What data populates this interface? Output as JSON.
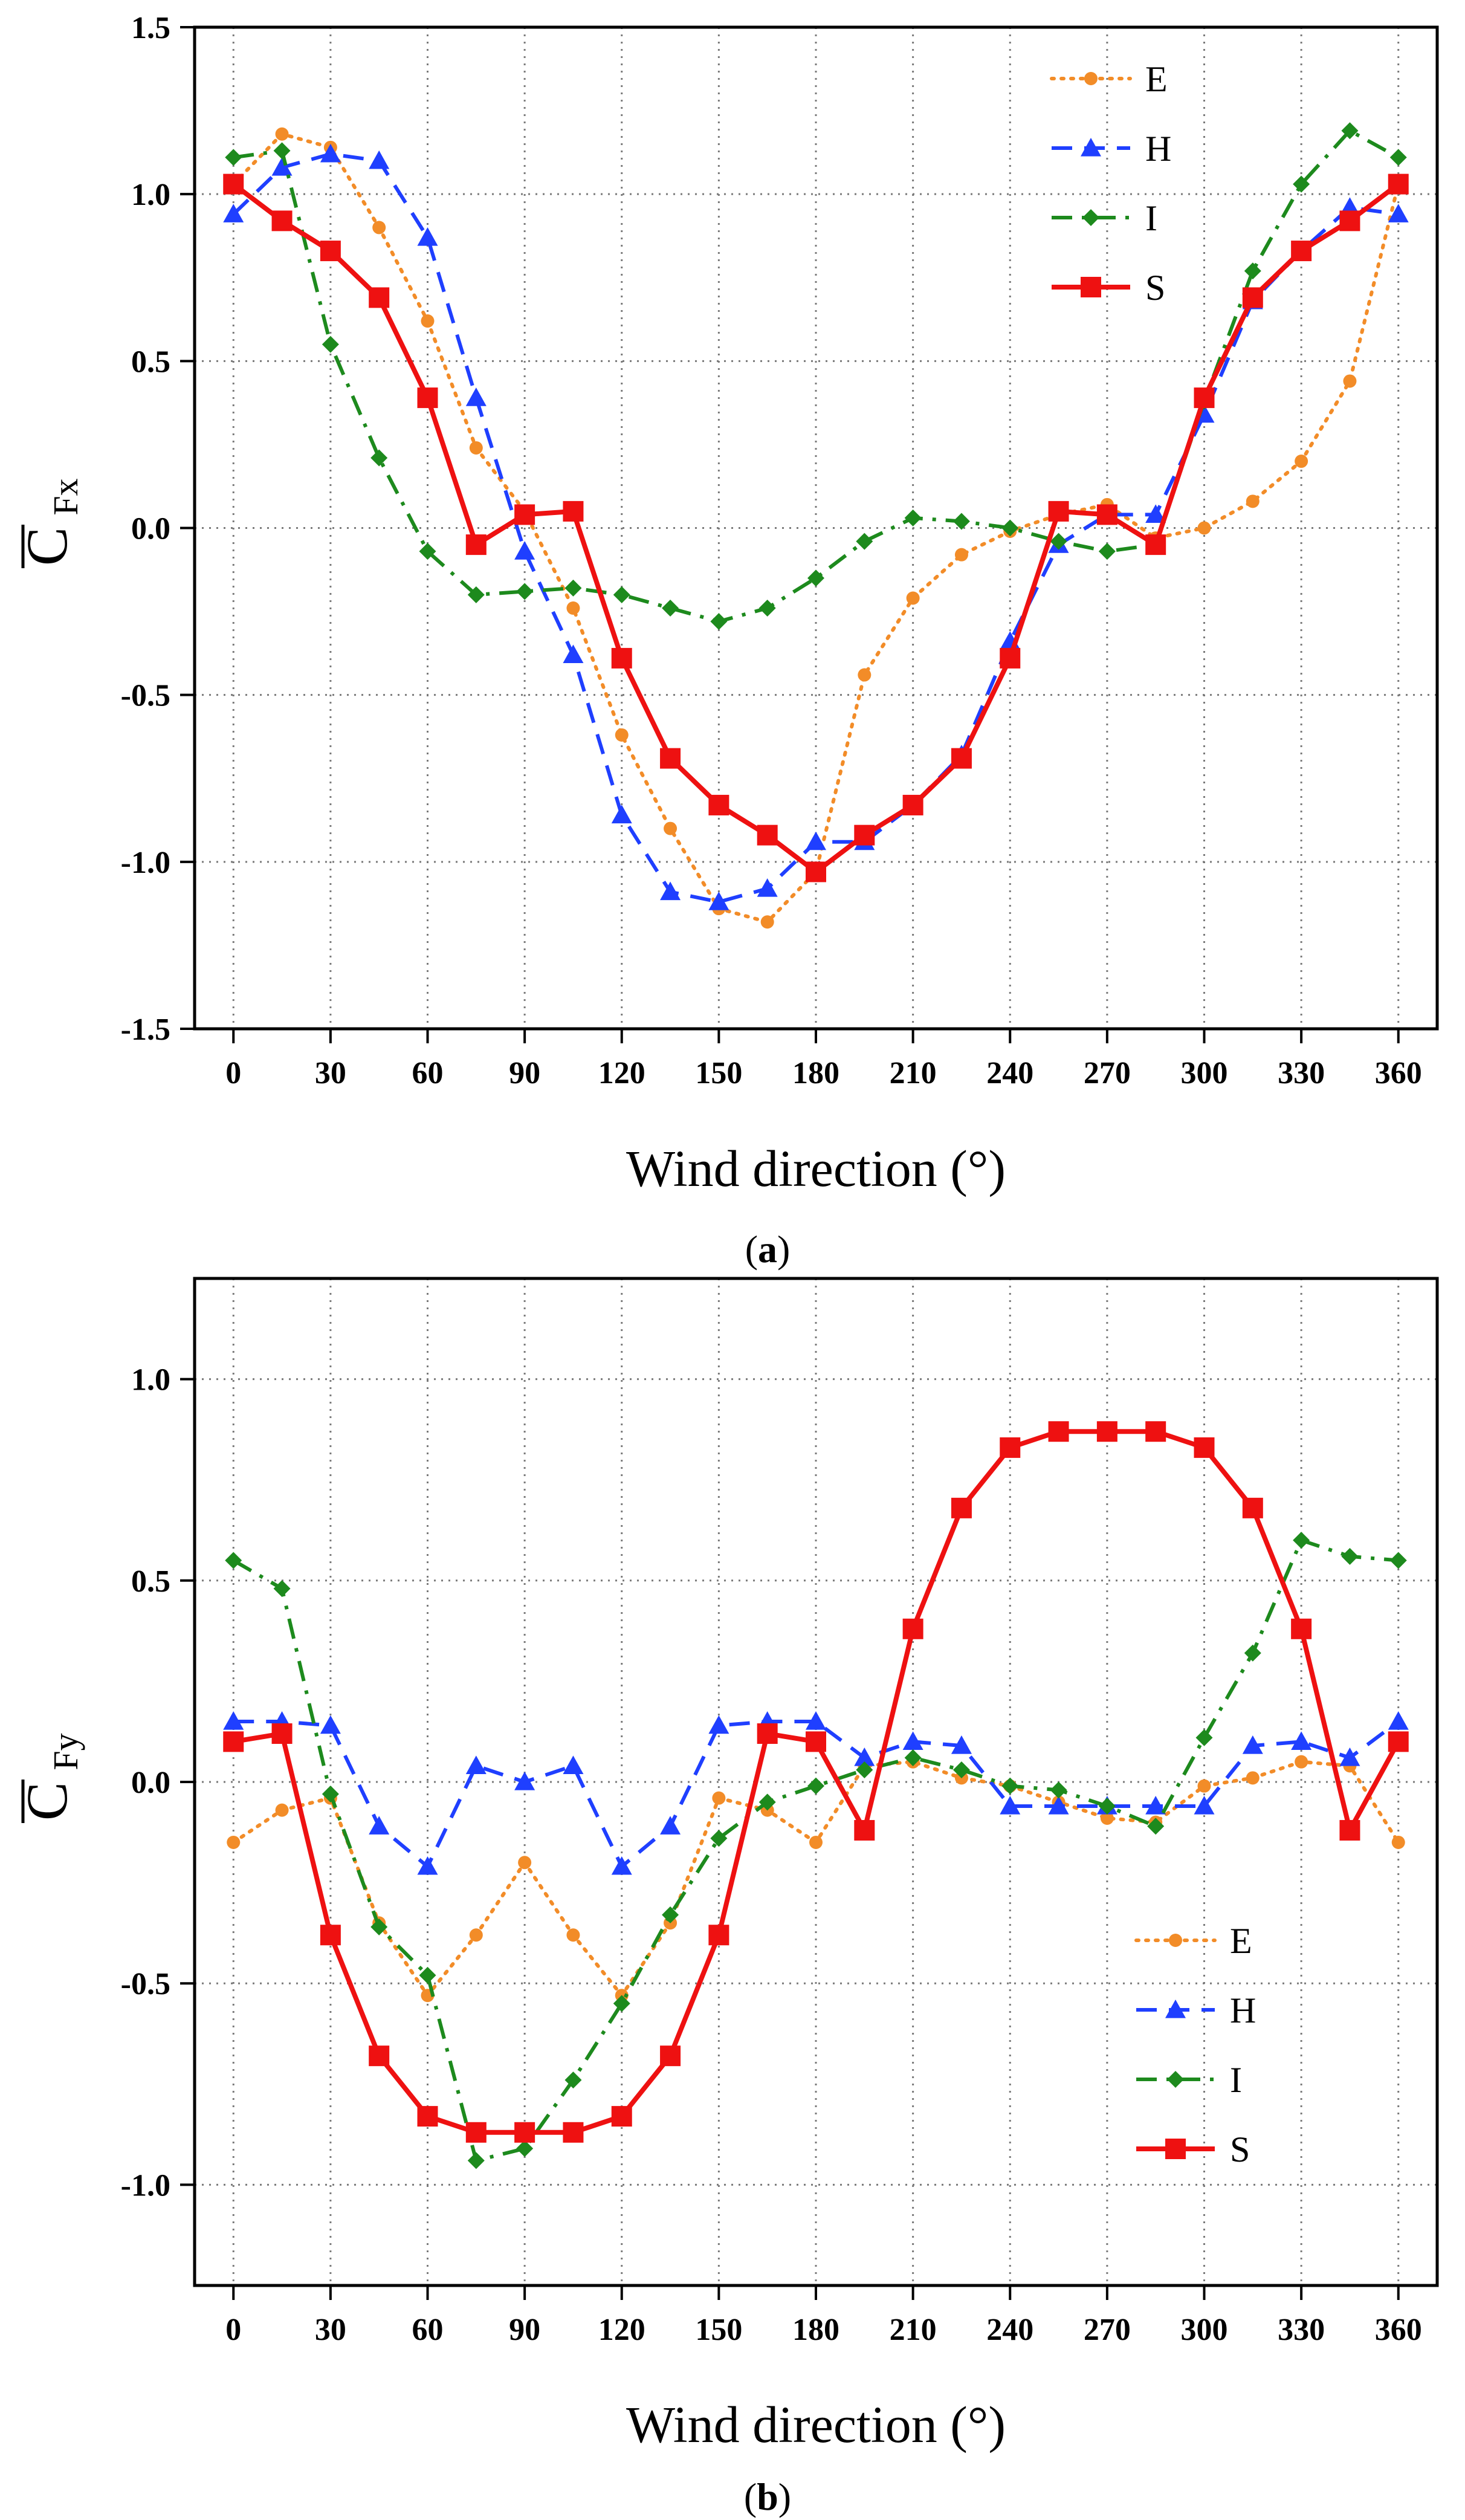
{
  "chart_data": [
    {
      "type": "line",
      "panel": "a",
      "caption_open": "(",
      "caption_letter": "a",
      "caption_close": ")",
      "ylabel_main": "C",
      "ylabel_sub": "Fx",
      "xlabel": "Wind direction (°)",
      "xlim": [
        -12,
        372
      ],
      "ylim": [
        -1.5,
        1.5
      ],
      "x_ticks": [
        0,
        30,
        60,
        90,
        120,
        150,
        180,
        210,
        240,
        270,
        300,
        330,
        360
      ],
      "x_tick_labels": [
        "0",
        "30",
        "60",
        "90",
        "120",
        "150",
        "180",
        "210",
        "240",
        "270",
        "300",
        "330",
        "360"
      ],
      "y_ticks": [
        -1.5,
        -1.0,
        -0.5,
        0.0,
        0.5,
        1.0,
        1.5
      ],
      "y_tick_labels": [
        "-1.5",
        "-1.0",
        "-0.5",
        "0.0",
        "0.5",
        "1.0",
        "1.5"
      ],
      "grid": true,
      "legend_position": "top-right",
      "x": [
        0,
        15,
        30,
        45,
        60,
        75,
        90,
        105,
        120,
        135,
        150,
        165,
        180,
        195,
        210,
        225,
        240,
        255,
        270,
        285,
        300,
        315,
        330,
        345,
        360
      ],
      "series": [
        {
          "name": "E",
          "color": "#f28c28",
          "marker": "circle",
          "dash": "dotted",
          "values": [
            1.03,
            1.18,
            1.14,
            0.9,
            0.62,
            0.24,
            0.05,
            -0.24,
            -0.62,
            -0.9,
            -1.14,
            -1.18,
            -1.03,
            -0.44,
            -0.21,
            -0.08,
            -0.01,
            0.04,
            0.07,
            -0.03,
            0.0,
            0.08,
            0.2,
            0.44,
            1.03
          ]
        },
        {
          "name": "H",
          "color": "#1f3fff",
          "marker": "triangle",
          "dash": "dashed",
          "values": [
            0.94,
            1.08,
            1.12,
            1.1,
            0.87,
            0.39,
            -0.07,
            -0.38,
            -0.86,
            -1.09,
            -1.12,
            -1.08,
            -0.94,
            -0.94,
            -0.83,
            -0.68,
            -0.34,
            -0.05,
            0.04,
            0.04,
            0.34,
            0.68,
            0.83,
            0.96,
            0.94
          ]
        },
        {
          "name": "I",
          "color": "#1d8a1d",
          "marker": "diamond",
          "dash": "dashdot",
          "values": [
            1.11,
            1.13,
            0.55,
            0.21,
            -0.07,
            -0.2,
            -0.19,
            -0.18,
            -0.2,
            -0.24,
            -0.28,
            -0.24,
            -0.15,
            -0.04,
            0.03,
            0.02,
            0.0,
            -0.04,
            -0.07,
            -0.05,
            0.38,
            0.77,
            1.03,
            1.19,
            1.11
          ]
        },
        {
          "name": "S",
          "color": "#ee1111",
          "marker": "square",
          "dash": "solid",
          "values": [
            1.03,
            0.92,
            0.83,
            0.69,
            0.39,
            -0.05,
            0.04,
            0.05,
            -0.39,
            -0.69,
            -0.83,
            -0.92,
            -1.03,
            -0.92,
            -0.83,
            -0.69,
            -0.39,
            0.05,
            0.04,
            -0.05,
            0.39,
            0.69,
            0.83,
            0.92,
            1.03
          ]
        }
      ]
    },
    {
      "type": "line",
      "panel": "b",
      "caption_open": "(",
      "caption_letter": "b",
      "caption_close": ")",
      "ylabel_main": "C",
      "ylabel_sub": "Fy",
      "xlabel": "Wind direction (°)",
      "xlim": [
        -12,
        372
      ],
      "ylim": [
        -1.25,
        1.25
      ],
      "x_ticks": [
        0,
        30,
        60,
        90,
        120,
        150,
        180,
        210,
        240,
        270,
        300,
        330,
        360
      ],
      "x_tick_labels": [
        "0",
        "30",
        "60",
        "90",
        "120",
        "150",
        "180",
        "210",
        "240",
        "270",
        "300",
        "330",
        "360"
      ],
      "y_ticks": [
        -1.0,
        -0.5,
        0.0,
        0.5,
        1.0
      ],
      "y_tick_labels": [
        "-1.0",
        "-0.5",
        "0.0",
        "0.5",
        "1.0"
      ],
      "grid": true,
      "legend_position": "bottom-right",
      "x": [
        0,
        15,
        30,
        45,
        60,
        75,
        90,
        105,
        120,
        135,
        150,
        165,
        180,
        195,
        210,
        225,
        240,
        255,
        270,
        285,
        300,
        315,
        330,
        345,
        360
      ],
      "series": [
        {
          "name": "E",
          "color": "#f28c28",
          "marker": "circle",
          "dash": "dotted",
          "values": [
            -0.15,
            -0.07,
            -0.04,
            -0.35,
            -0.53,
            -0.38,
            -0.2,
            -0.38,
            -0.53,
            -0.35,
            -0.04,
            -0.07,
            -0.15,
            0.04,
            0.05,
            0.01,
            -0.01,
            -0.05,
            -0.09,
            -0.1,
            -0.01,
            0.01,
            0.05,
            0.04,
            -0.15
          ]
        },
        {
          "name": "H",
          "color": "#1f3fff",
          "marker": "triangle",
          "dash": "dashed",
          "values": [
            0.15,
            0.15,
            0.14,
            -0.11,
            -0.21,
            0.04,
            0.0,
            0.04,
            -0.21,
            -0.11,
            0.14,
            0.15,
            0.15,
            0.06,
            0.1,
            0.09,
            -0.06,
            -0.06,
            -0.06,
            -0.06,
            -0.06,
            0.09,
            0.1,
            0.06,
            0.15
          ]
        },
        {
          "name": "I",
          "color": "#1d8a1d",
          "marker": "diamond",
          "dash": "dashdot",
          "values": [
            0.55,
            0.48,
            -0.03,
            -0.36,
            -0.48,
            -0.94,
            -0.91,
            -0.74,
            -0.55,
            -0.33,
            -0.14,
            -0.05,
            -0.01,
            0.03,
            0.06,
            0.03,
            -0.01,
            -0.02,
            -0.06,
            -0.11,
            0.11,
            0.32,
            0.6,
            0.56,
            0.55
          ]
        },
        {
          "name": "S",
          "color": "#ee1111",
          "marker": "square",
          "dash": "solid",
          "values": [
            0.1,
            0.12,
            -0.38,
            -0.68,
            -0.83,
            -0.87,
            -0.87,
            -0.87,
            -0.83,
            -0.68,
            -0.38,
            0.12,
            0.1,
            -0.12,
            0.38,
            0.68,
            0.83,
            0.87,
            0.87,
            0.87,
            0.83,
            0.68,
            0.38,
            -0.12,
            0.1
          ]
        }
      ]
    }
  ]
}
